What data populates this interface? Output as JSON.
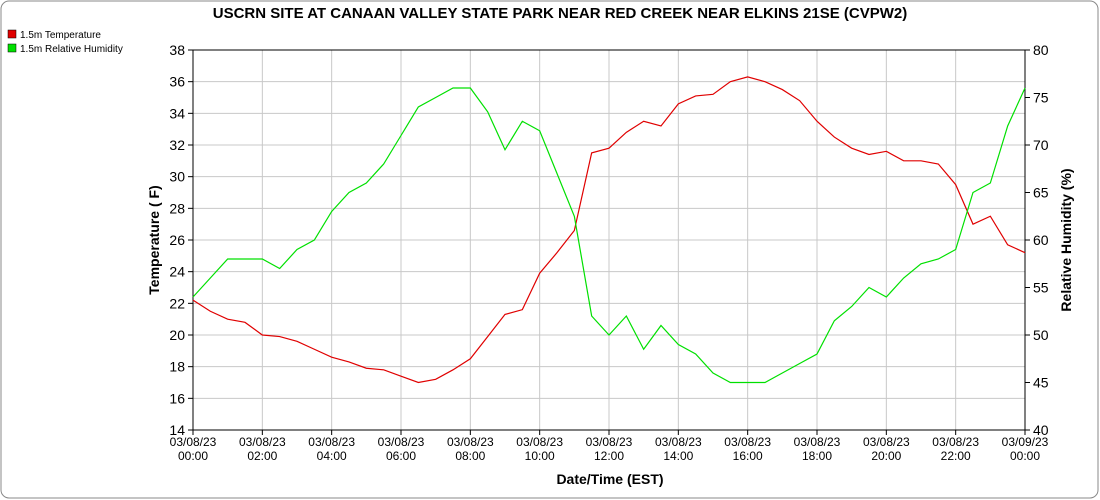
{
  "chart_data": {
    "type": "line",
    "title": "USCRN SITE AT CANAAN VALLEY STATE PARK NEAR RED CREEK NEAR ELKINS 21SE (CVPW2)",
    "x_label": "Date/Time (EST)",
    "y_label": "Temperature ( F)",
    "y2_label": "Relative Humidity (%)",
    "x": [
      0,
      0.5,
      1,
      1.5,
      2,
      2.5,
      3,
      3.5,
      4,
      4.5,
      5,
      5.5,
      6,
      6.5,
      7,
      7.5,
      8,
      8.5,
      9,
      9.5,
      10,
      10.5,
      11,
      11.5,
      12,
      12.5,
      13,
      13.5,
      14,
      14.5,
      15,
      15.5,
      16,
      16.5,
      17,
      17.5,
      18,
      18.5,
      19,
      19.5,
      20,
      20.5,
      21,
      21.5,
      22,
      22.5,
      23,
      23.5,
      24
    ],
    "series": [
      {
        "name": "1.5m Temperature",
        "color": "#e00000",
        "axis": "y",
        "values": [
          22.2,
          21.5,
          21.0,
          20.8,
          20.0,
          19.9,
          19.6,
          19.1,
          18.6,
          18.3,
          17.9,
          17.8,
          17.4,
          17.0,
          17.2,
          17.8,
          18.5,
          19.9,
          21.3,
          21.6,
          23.9,
          25.2,
          26.6,
          31.5,
          31.8,
          32.8,
          33.5,
          33.2,
          34.6,
          35.1,
          35.2,
          36.0,
          36.3,
          36.0,
          35.5,
          34.8,
          33.5,
          32.5,
          31.8,
          31.4,
          31.6,
          31.0,
          31.0,
          30.8,
          29.5,
          27.0,
          27.5,
          25.7,
          25.2
        ]
      },
      {
        "name": "1.5m Relative Humidity",
        "color": "#00e000",
        "axis": "y2",
        "values": [
          54,
          56,
          58,
          58,
          58,
          57,
          59,
          60,
          63,
          65,
          66,
          68,
          71,
          74,
          75,
          76,
          76,
          73.5,
          69.5,
          72.5,
          71.5,
          67,
          62.5,
          52,
          50,
          52,
          48.5,
          51,
          49,
          48,
          46,
          45,
          45,
          45,
          46,
          47,
          48,
          51.5,
          53,
          55,
          54,
          56,
          57.5,
          58,
          59,
          65,
          66,
          72,
          76
        ]
      }
    ],
    "xlim": [
      0,
      24
    ],
    "xticks": [
      {
        "value": 0,
        "label": "03/08/23 00:00"
      },
      {
        "value": 2,
        "label": "03/08/23 02:00"
      },
      {
        "value": 4,
        "label": "03/08/23 04:00"
      },
      {
        "value": 6,
        "label": "03/08/23 06:00"
      },
      {
        "value": 8,
        "label": "03/08/23 08:00"
      },
      {
        "value": 10,
        "label": "03/08/23 10:00"
      },
      {
        "value": 12,
        "label": "03/08/23 12:00"
      },
      {
        "value": 14,
        "label": "03/08/23 14:00"
      },
      {
        "value": 16,
        "label": "03/08/23 16:00"
      },
      {
        "value": 18,
        "label": "03/08/23 18:00"
      },
      {
        "value": 20,
        "label": "03/08/23 20:00"
      },
      {
        "value": 22,
        "label": "03/08/23 22:00"
      },
      {
        "value": 24,
        "label": "03/09/23 00:00"
      }
    ],
    "ylim": [
      14,
      38
    ],
    "yticks": [
      14,
      16,
      18,
      20,
      22,
      24,
      26,
      28,
      30,
      32,
      34,
      36,
      38
    ],
    "y2lim": [
      40,
      80
    ],
    "y2ticks": [
      40,
      45,
      50,
      55,
      60,
      65,
      70,
      75,
      80
    ],
    "grid": true,
    "legend": "top-left"
  }
}
